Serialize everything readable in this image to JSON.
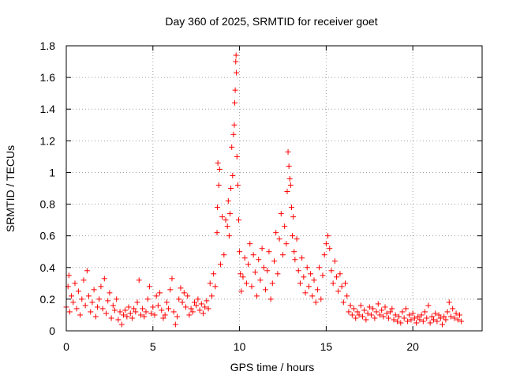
{
  "chart_data": {
    "type": "scatter",
    "title": "Day 360 of 2025, SRMTID for receiver goet",
    "xlabel": "GPS time / hours",
    "ylabel": "SRMTID / TECUs",
    "xlim": [
      0,
      24
    ],
    "ylim": [
      0,
      1.8
    ],
    "xticks": [
      0,
      5,
      10,
      15,
      20
    ],
    "xtick_labels": [
      "0",
      "5",
      "10",
      "15",
      "20"
    ],
    "yticks": [
      0,
      0.2,
      0.4,
      0.6,
      0.8,
      1.0,
      1.2,
      1.4,
      1.6,
      1.8
    ],
    "ytick_labels": [
      "0",
      "0.2",
      "0.4",
      "0.6",
      "0.8",
      "1",
      "1.2",
      "1.4",
      "1.6",
      "1.8"
    ],
    "grid": true,
    "marker": "+",
    "series": [
      {
        "name": "SRMTID",
        "color": "#ff0000",
        "points": [
          [
            0.0,
            0.15
          ],
          [
            0.1,
            0.28
          ],
          [
            0.15,
            0.35
          ],
          [
            0.2,
            0.12
          ],
          [
            0.3,
            0.22
          ],
          [
            0.4,
            0.18
          ],
          [
            0.5,
            0.3
          ],
          [
            0.6,
            0.14
          ],
          [
            0.7,
            0.25
          ],
          [
            0.8,
            0.1
          ],
          [
            0.9,
            0.2
          ],
          [
            1.0,
            0.32
          ],
          [
            1.1,
            0.16
          ],
          [
            1.2,
            0.38
          ],
          [
            1.3,
            0.22
          ],
          [
            1.4,
            0.12
          ],
          [
            1.5,
            0.18
          ],
          [
            1.6,
            0.26
          ],
          [
            1.7,
            0.09
          ],
          [
            1.8,
            0.15
          ],
          [
            1.9,
            0.2
          ],
          [
            2.0,
            0.28
          ],
          [
            2.1,
            0.14
          ],
          [
            2.2,
            0.33
          ],
          [
            2.3,
            0.11
          ],
          [
            2.4,
            0.19
          ],
          [
            2.5,
            0.24
          ],
          [
            2.6,
            0.08
          ],
          [
            2.7,
            0.16
          ],
          [
            2.8,
            0.13
          ],
          [
            2.9,
            0.2
          ],
          [
            3.0,
            0.07
          ],
          [
            3.1,
            0.12
          ],
          [
            3.2,
            0.04
          ],
          [
            3.3,
            0.1
          ],
          [
            3.4,
            0.13
          ],
          [
            3.5,
            0.09
          ],
          [
            3.6,
            0.15
          ],
          [
            3.7,
            0.11
          ],
          [
            3.8,
            0.08
          ],
          [
            3.9,
            0.14
          ],
          [
            4.0,
            0.12
          ],
          [
            4.1,
            0.18
          ],
          [
            4.2,
            0.32
          ],
          [
            4.3,
            0.1
          ],
          [
            4.4,
            0.14
          ],
          [
            4.5,
            0.09
          ],
          [
            4.6,
            0.12
          ],
          [
            4.7,
            0.2
          ],
          [
            4.8,
            0.28
          ],
          [
            4.9,
            0.11
          ],
          [
            5.0,
            0.15
          ],
          [
            5.1,
            0.1
          ],
          [
            5.2,
            0.22
          ],
          [
            5.3,
            0.16
          ],
          [
            5.4,
            0.24
          ],
          [
            5.5,
            0.13
          ],
          [
            5.6,
            0.08
          ],
          [
            5.7,
            0.1
          ],
          [
            5.8,
            0.18
          ],
          [
            5.9,
            0.14
          ],
          [
            6.0,
            0.26
          ],
          [
            6.1,
            0.33
          ],
          [
            6.2,
            0.12
          ],
          [
            6.3,
            0.04
          ],
          [
            6.4,
            0.09
          ],
          [
            6.5,
            0.2
          ],
          [
            6.6,
            0.27
          ],
          [
            6.7,
            0.18
          ],
          [
            6.8,
            0.24
          ],
          [
            6.9,
            0.15
          ],
          [
            7.0,
            0.22
          ],
          [
            7.1,
            0.1
          ],
          [
            7.2,
            0.14
          ],
          [
            7.3,
            0.12
          ],
          [
            7.4,
            0.18
          ],
          [
            7.5,
            0.16
          ],
          [
            7.6,
            0.2
          ],
          [
            7.7,
            0.13
          ],
          [
            7.8,
            0.17
          ],
          [
            7.9,
            0.11
          ],
          [
            8.0,
            0.15
          ],
          [
            8.1,
            0.19
          ],
          [
            8.2,
            0.14
          ],
          [
            8.3,
            0.3
          ],
          [
            8.4,
            0.22
          ],
          [
            8.5,
            0.36
          ],
          [
            8.6,
            0.28
          ],
          [
            8.7,
            0.62
          ],
          [
            8.72,
            0.78
          ],
          [
            8.75,
            1.06
          ],
          [
            8.8,
            0.92
          ],
          [
            8.85,
            1.02
          ],
          [
            8.9,
            0.42
          ],
          [
            9.0,
            0.72
          ],
          [
            9.1,
            0.48
          ],
          [
            9.2,
            0.7
          ],
          [
            9.3,
            0.66
          ],
          [
            9.35,
            0.82
          ],
          [
            9.4,
            0.6
          ],
          [
            9.45,
            0.74
          ],
          [
            9.5,
            0.9
          ],
          [
            9.55,
            1.16
          ],
          [
            9.6,
            0.98
          ],
          [
            9.65,
            1.24
          ],
          [
            9.7,
            1.3
          ],
          [
            9.72,
            1.44
          ],
          [
            9.75,
            1.52
          ],
          [
            9.78,
            1.7
          ],
          [
            9.8,
            1.74
          ],
          [
            9.82,
            1.63
          ],
          [
            9.85,
            1.1
          ],
          [
            9.9,
            0.92
          ],
          [
            9.95,
            0.7
          ],
          [
            10.0,
            0.5
          ],
          [
            10.05,
            0.36
          ],
          [
            10.1,
            0.25
          ],
          [
            10.2,
            0.34
          ],
          [
            10.3,
            0.46
          ],
          [
            10.4,
            0.3
          ],
          [
            10.5,
            0.42
          ],
          [
            10.6,
            0.55
          ],
          [
            10.7,
            0.28
          ],
          [
            10.8,
            0.48
          ],
          [
            10.9,
            0.37
          ],
          [
            11.0,
            0.22
          ],
          [
            11.1,
            0.45
          ],
          [
            11.2,
            0.32
          ],
          [
            11.3,
            0.52
          ],
          [
            11.4,
            0.4
          ],
          [
            11.5,
            0.26
          ],
          [
            11.6,
            0.38
          ],
          [
            11.7,
            0.5
          ],
          [
            11.8,
            0.2
          ],
          [
            11.9,
            0.3
          ],
          [
            12.0,
            0.44
          ],
          [
            12.1,
            0.62
          ],
          [
            12.2,
            0.36
          ],
          [
            12.3,
            0.58
          ],
          [
            12.4,
            0.74
          ],
          [
            12.5,
            0.48
          ],
          [
            12.6,
            0.66
          ],
          [
            12.7,
            0.55
          ],
          [
            12.75,
            0.88
          ],
          [
            12.8,
            1.13
          ],
          [
            12.85,
            1.04
          ],
          [
            12.9,
            0.96
          ],
          [
            12.95,
            0.92
          ],
          [
            13.0,
            0.78
          ],
          [
            13.05,
            0.6
          ],
          [
            13.1,
            0.72
          ],
          [
            13.15,
            0.5
          ],
          [
            13.2,
            0.45
          ],
          [
            13.3,
            0.58
          ],
          [
            13.4,
            0.38
          ],
          [
            13.5,
            0.3
          ],
          [
            13.6,
            0.46
          ],
          [
            13.7,
            0.34
          ],
          [
            13.8,
            0.24
          ],
          [
            13.9,
            0.4
          ],
          [
            14.0,
            0.28
          ],
          [
            14.1,
            0.36
          ],
          [
            14.2,
            0.22
          ],
          [
            14.3,
            0.32
          ],
          [
            14.4,
            0.18
          ],
          [
            14.5,
            0.26
          ],
          [
            14.6,
            0.4
          ],
          [
            14.7,
            0.2
          ],
          [
            14.8,
            0.35
          ],
          [
            14.9,
            0.48
          ],
          [
            15.0,
            0.55
          ],
          [
            15.1,
            0.6
          ],
          [
            15.2,
            0.52
          ],
          [
            15.3,
            0.38
          ],
          [
            15.4,
            0.3
          ],
          [
            15.5,
            0.44
          ],
          [
            15.6,
            0.34
          ],
          [
            15.7,
            0.25
          ],
          [
            15.8,
            0.36
          ],
          [
            15.9,
            0.28
          ],
          [
            16.0,
            0.18
          ],
          [
            16.1,
            0.3
          ],
          [
            16.2,
            0.22
          ],
          [
            16.3,
            0.12
          ],
          [
            16.4,
            0.16
          ],
          [
            16.5,
            0.1
          ],
          [
            16.6,
            0.14
          ],
          [
            16.7,
            0.08
          ],
          [
            16.8,
            0.12
          ],
          [
            16.9,
            0.1
          ],
          [
            17.0,
            0.16
          ],
          [
            17.1,
            0.09
          ],
          [
            17.2,
            0.13
          ],
          [
            17.3,
            0.07
          ],
          [
            17.4,
            0.11
          ],
          [
            17.5,
            0.15
          ],
          [
            17.6,
            0.1
          ],
          [
            17.7,
            0.14
          ],
          [
            17.8,
            0.08
          ],
          [
            17.9,
            0.12
          ],
          [
            18.0,
            0.17
          ],
          [
            18.1,
            0.1
          ],
          [
            18.2,
            0.13
          ],
          [
            18.3,
            0.09
          ],
          [
            18.4,
            0.15
          ],
          [
            18.5,
            0.11
          ],
          [
            18.6,
            0.08
          ],
          [
            18.7,
            0.12
          ],
          [
            18.8,
            0.14
          ],
          [
            18.9,
            0.07
          ],
          [
            19.0,
            0.1
          ],
          [
            19.1,
            0.06
          ],
          [
            19.2,
            0.09
          ],
          [
            19.3,
            0.05
          ],
          [
            19.4,
            0.12
          ],
          [
            19.5,
            0.08
          ],
          [
            19.6,
            0.14
          ],
          [
            19.7,
            0.06
          ],
          [
            19.8,
            0.1
          ],
          [
            19.9,
            0.07
          ],
          [
            20.0,
            0.11
          ],
          [
            20.1,
            0.08
          ],
          [
            20.2,
            0.05
          ],
          [
            20.3,
            0.09
          ],
          [
            20.4,
            0.07
          ],
          [
            20.5,
            0.1
          ],
          [
            20.6,
            0.06
          ],
          [
            20.7,
            0.12
          ],
          [
            20.8,
            0.08
          ],
          [
            20.9,
            0.16
          ],
          [
            21.0,
            0.05
          ],
          [
            21.1,
            0.09
          ],
          [
            21.2,
            0.07
          ],
          [
            21.3,
            0.11
          ],
          [
            21.4,
            0.06
          ],
          [
            21.5,
            0.1
          ],
          [
            21.6,
            0.08
          ],
          [
            21.7,
            0.04
          ],
          [
            21.8,
            0.09
          ],
          [
            21.9,
            0.07
          ],
          [
            22.0,
            0.12
          ],
          [
            22.1,
            0.18
          ],
          [
            22.2,
            0.09
          ],
          [
            22.3,
            0.14
          ],
          [
            22.4,
            0.08
          ],
          [
            22.5,
            0.11
          ],
          [
            22.6,
            0.07
          ],
          [
            22.7,
            0.1
          ],
          [
            22.8,
            0.06
          ]
        ]
      }
    ]
  }
}
